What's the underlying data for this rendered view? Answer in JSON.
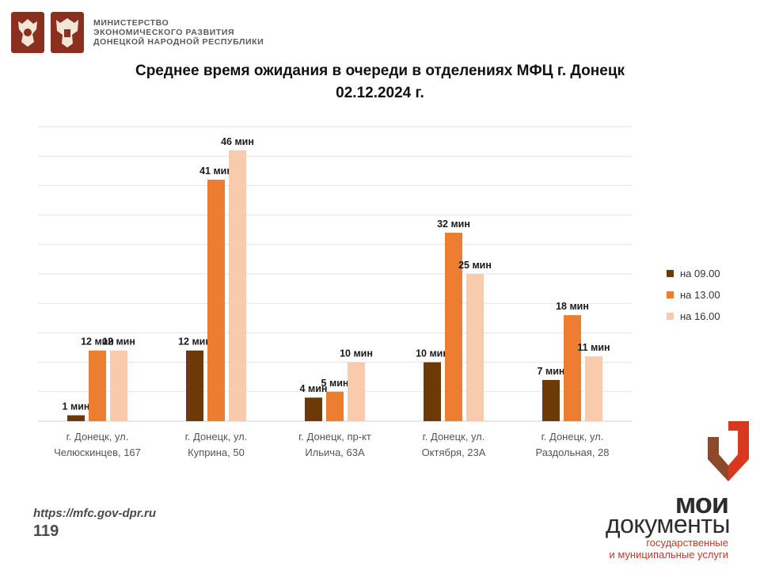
{
  "header": {
    "emblem_left_icon": "coat-of-arms-icon",
    "emblem_right_icon": "ministry-emblem-icon",
    "ministry_lines": [
      "МИНИСТЕРСТВО",
      "ЭКОНОМИЧЕСКОГО РАЗВИТИЯ",
      "ДОНЕЦКОЙ НАРОДНОЙ РЕСПУБЛИКИ"
    ]
  },
  "title_line1": "Среднее время ожидания в очереди в отделениях МФЦ г. Донецк",
  "title_line2": "02.12.2024 г.",
  "chart_data": {
    "type": "bar",
    "title": "Среднее время ожидания в очереди в отделениях МФЦ г. Донецк 02.12.2024 г.",
    "categories": [
      [
        "г. Донецк, ул.",
        "Челюскинцев, 167"
      ],
      [
        "г. Донецк, ул.",
        "Куприна, 50"
      ],
      [
        "г. Донецк, пр-кт",
        "Ильича, 63А"
      ],
      [
        "г. Донецк, ул.",
        "Октября, 23А"
      ],
      [
        "г. Донецк, ул.",
        "Раздольная, 28"
      ]
    ],
    "series": [
      {
        "name": "на 09.00",
        "color": "#6b3a06",
        "values": [
          1,
          12,
          4,
          10,
          7
        ],
        "labels": [
          "1 мин",
          "12 мин",
          "4 мин",
          "10 мин",
          "7 мин"
        ]
      },
      {
        "name": "на 13.00",
        "color": "#ed7d31",
        "values": [
          12,
          41,
          5,
          32,
          18
        ],
        "labels": [
          "12 мин",
          "41 мин",
          "5 мин",
          "32 мин",
          "18 мин"
        ]
      },
      {
        "name": "на 16.00",
        "color": "#f8cbad",
        "values": [
          12,
          46,
          10,
          25,
          11
        ],
        "labels": [
          "12 мин",
          "46 мин",
          "10 мин",
          "25 мин",
          "11 мин"
        ]
      }
    ],
    "ylim": [
      0,
      50
    ],
    "grid": true,
    "legend": "right"
  },
  "footer": {
    "url": "https://mfc.gov-dpr.ru",
    "page_number": "119"
  },
  "brand": {
    "icon": "moi-dokumenty-logo-icon",
    "line1": "мои",
    "line2": "документы",
    "sub1": "государственные",
    "sub2": "и муниципальные услуги",
    "color_red": "#d9381e",
    "color_dark": "#2d2d2d"
  }
}
